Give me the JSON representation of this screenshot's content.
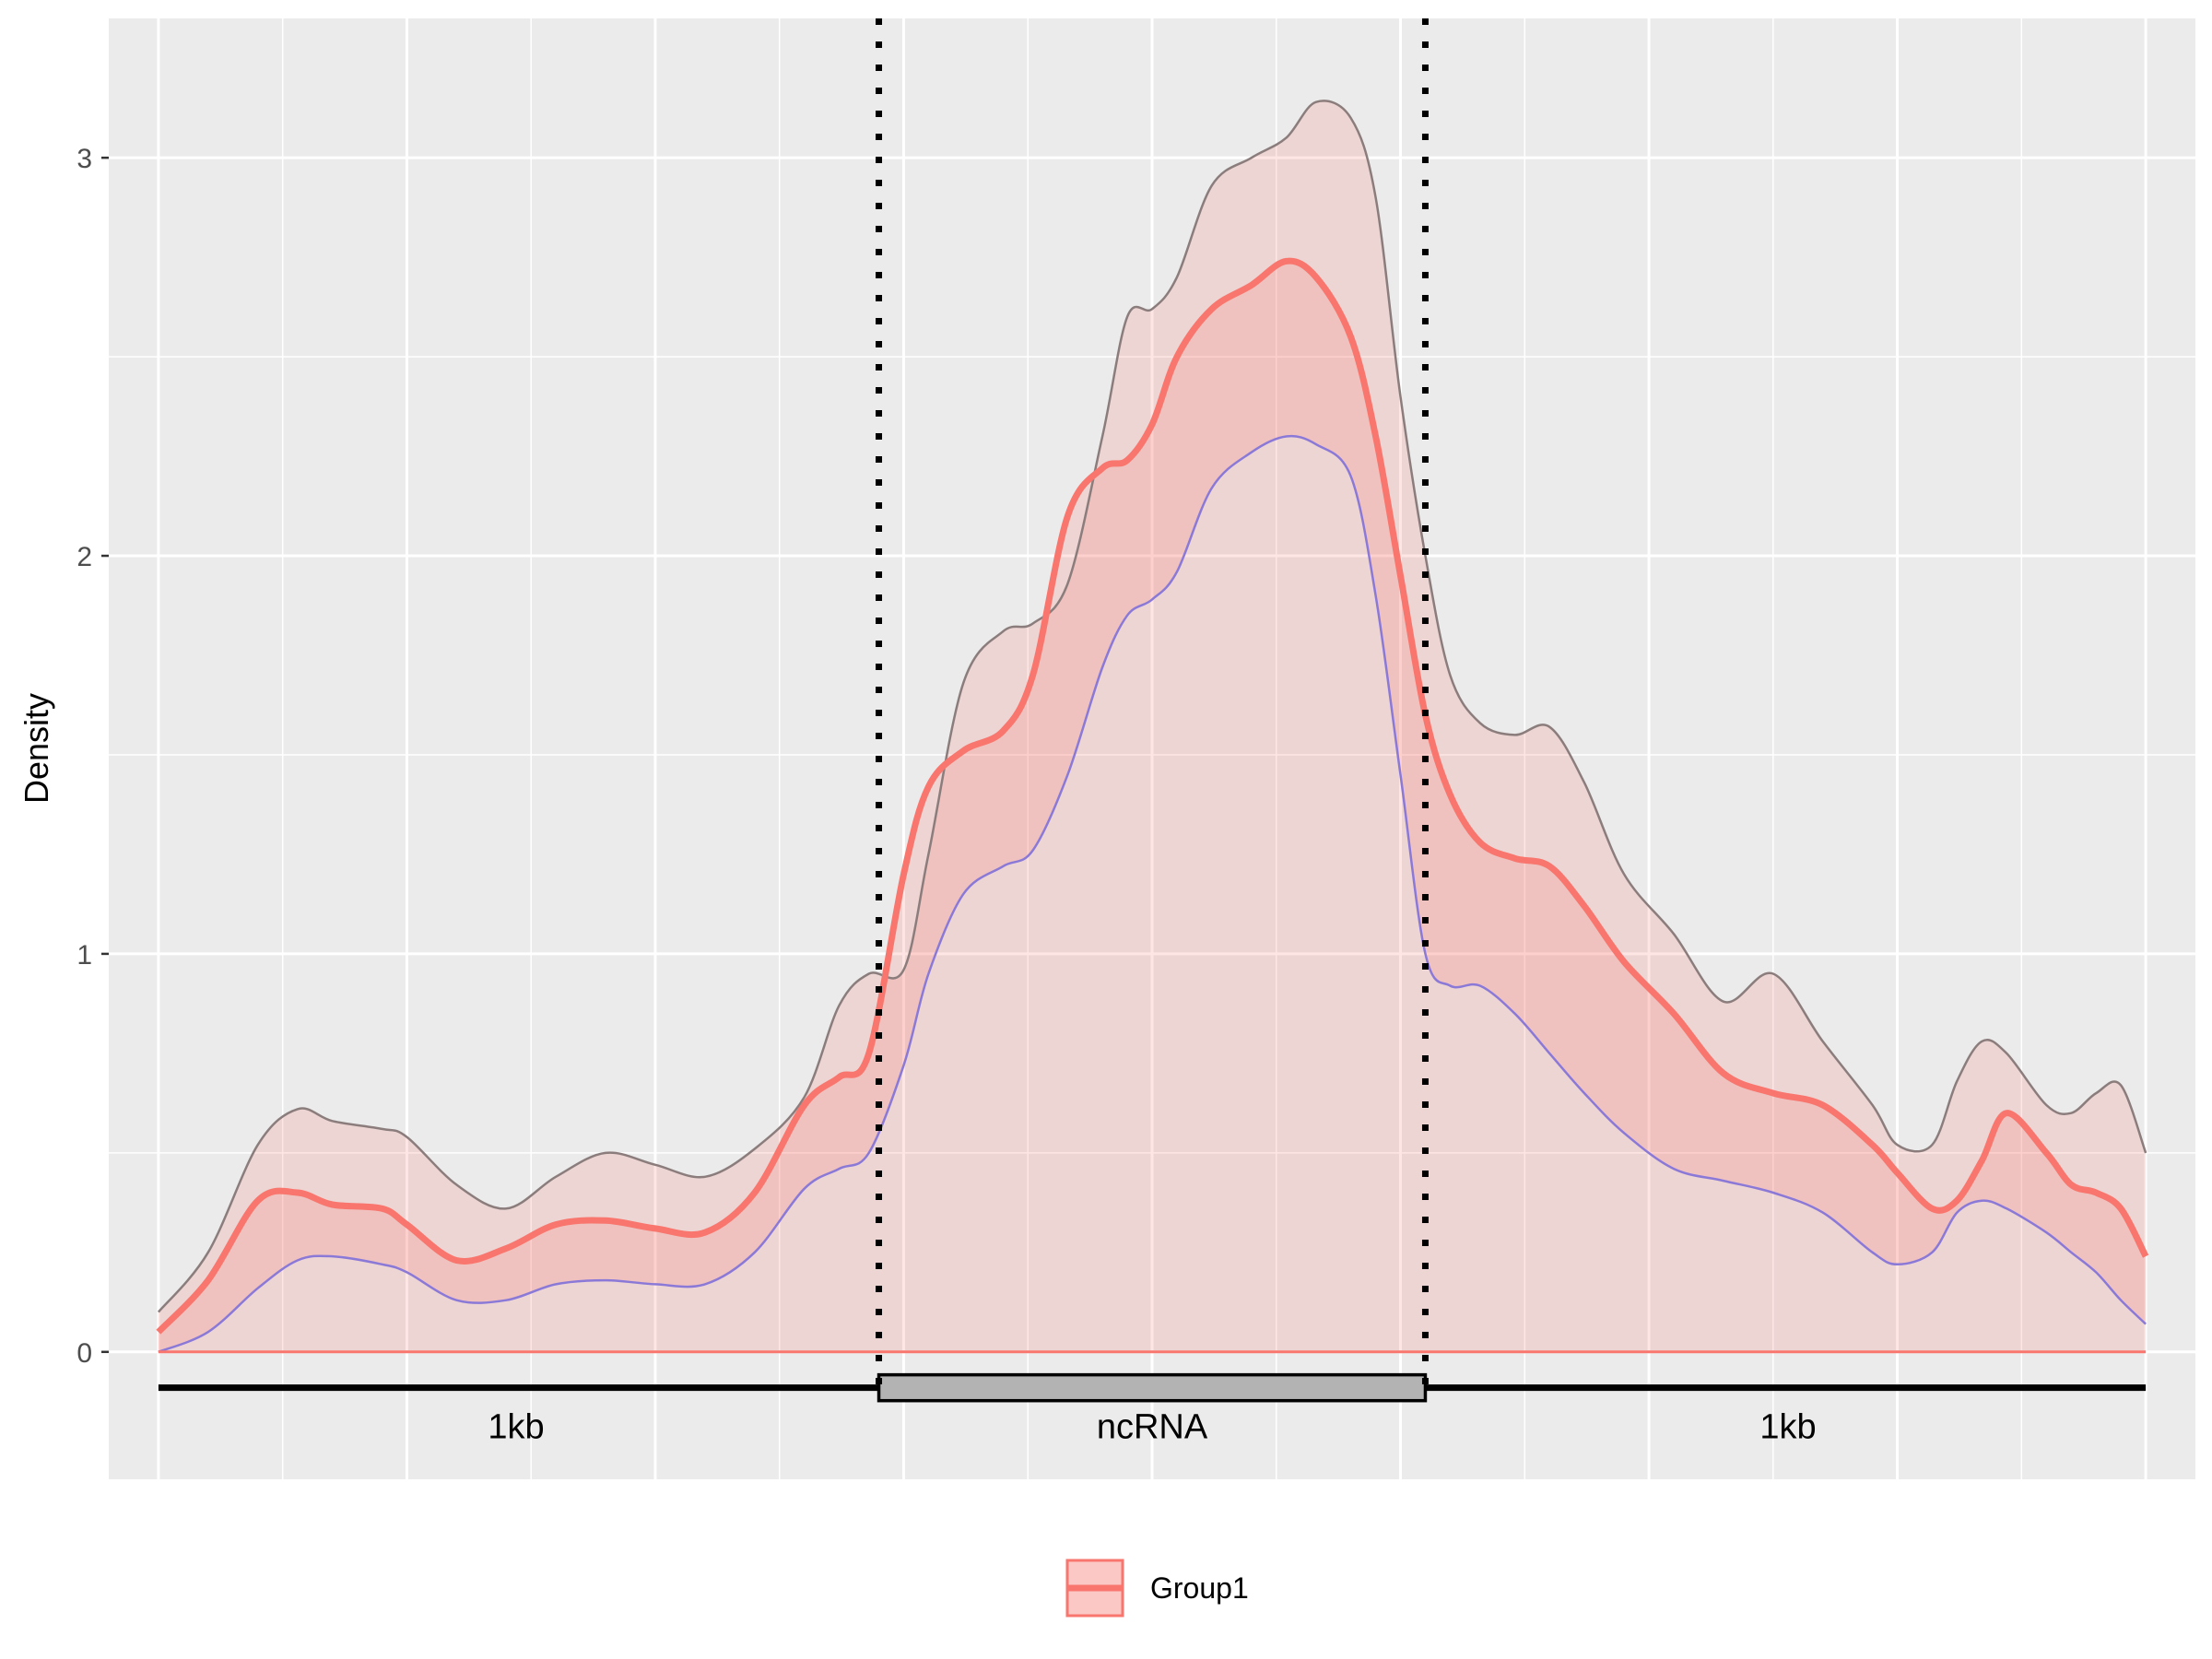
{
  "chart_data": {
    "type": "area",
    "title": "",
    "xlabel": "",
    "ylabel": "Density",
    "xlim": [
      -0.1,
      4.1
    ],
    "ylim": [
      -0.32,
      3.35
    ],
    "y_ticks": [
      0,
      1,
      2,
      3
    ],
    "y_tick_labels": [
      "0",
      "1",
      "2",
      "3"
    ],
    "grid": true,
    "legend_position": "bottom",
    "colors": {
      "panel": "#ebebeb",
      "grid": "#ffffff",
      "band_fill": "#f8766d",
      "mean_line": "#f8766d",
      "upper_line": "#8c7d7d",
      "lower_line": "#8b79d8",
      "gene_box": "#b3b3b3"
    },
    "boundaries": [
      1.45,
      2.55
    ],
    "gene_model": {
      "y": -0.09,
      "box_height": 0.065,
      "labels": [
        {
          "x": 0.72,
          "text": "1kb"
        },
        {
          "x": 2.0,
          "text": "ncRNA"
        },
        {
          "x": 3.28,
          "text": "1kb"
        }
      ]
    },
    "series": [
      {
        "name": "Group1",
        "x": [
          0.0,
          0.1,
          0.2,
          0.28,
          0.35,
          0.45,
          0.5,
          0.6,
          0.7,
          0.8,
          0.9,
          1.0,
          1.1,
          1.2,
          1.3,
          1.37,
          1.43,
          1.5,
          1.55,
          1.62,
          1.7,
          1.76,
          1.83,
          1.9,
          1.95,
          2.0,
          2.05,
          2.12,
          2.2,
          2.27,
          2.33,
          2.4,
          2.45,
          2.5,
          2.55,
          2.6,
          2.66,
          2.73,
          2.8,
          2.87,
          2.95,
          3.05,
          3.15,
          3.25,
          3.35,
          3.45,
          3.5,
          3.57,
          3.62,
          3.67,
          3.72,
          3.8,
          3.85,
          3.9,
          3.95,
          4.0
        ],
        "mean": [
          0.05,
          0.18,
          0.38,
          0.4,
          0.37,
          0.36,
          0.32,
          0.23,
          0.26,
          0.32,
          0.33,
          0.31,
          0.3,
          0.4,
          0.62,
          0.69,
          0.75,
          1.2,
          1.42,
          1.51,
          1.56,
          1.7,
          2.1,
          2.22,
          2.24,
          2.33,
          2.5,
          2.62,
          2.68,
          2.74,
          2.7,
          2.55,
          2.3,
          1.95,
          1.6,
          1.4,
          1.28,
          1.24,
          1.22,
          1.12,
          0.98,
          0.85,
          0.7,
          0.65,
          0.62,
          0.52,
          0.45,
          0.36,
          0.38,
          0.48,
          0.6,
          0.5,
          0.42,
          0.4,
          0.36,
          0.24
        ],
        "upper": [
          0.1,
          0.25,
          0.52,
          0.61,
          0.58,
          0.56,
          0.54,
          0.42,
          0.36,
          0.44,
          0.5,
          0.47,
          0.44,
          0.51,
          0.64,
          0.87,
          0.95,
          0.96,
          1.25,
          1.68,
          1.81,
          1.83,
          1.93,
          2.3,
          2.6,
          2.62,
          2.7,
          2.93,
          3.0,
          3.05,
          3.14,
          3.1,
          2.9,
          2.4,
          2.0,
          1.7,
          1.58,
          1.55,
          1.57,
          1.43,
          1.2,
          1.05,
          0.88,
          0.95,
          0.78,
          0.62,
          0.52,
          0.52,
          0.68,
          0.78,
          0.75,
          0.62,
          0.6,
          0.65,
          0.67,
          0.5
        ],
        "lower": [
          0.0,
          0.05,
          0.16,
          0.23,
          0.24,
          0.22,
          0.2,
          0.13,
          0.13,
          0.17,
          0.18,
          0.17,
          0.17,
          0.25,
          0.41,
          0.46,
          0.5,
          0.72,
          0.95,
          1.15,
          1.22,
          1.26,
          1.45,
          1.72,
          1.85,
          1.89,
          1.96,
          2.17,
          2.26,
          2.3,
          2.28,
          2.2,
          1.9,
          1.45,
          1.0,
          0.92,
          0.92,
          0.85,
          0.75,
          0.65,
          0.55,
          0.46,
          0.43,
          0.4,
          0.35,
          0.25,
          0.22,
          0.25,
          0.35,
          0.38,
          0.36,
          0.3,
          0.25,
          0.2,
          0.13,
          0.07
        ]
      }
    ]
  }
}
